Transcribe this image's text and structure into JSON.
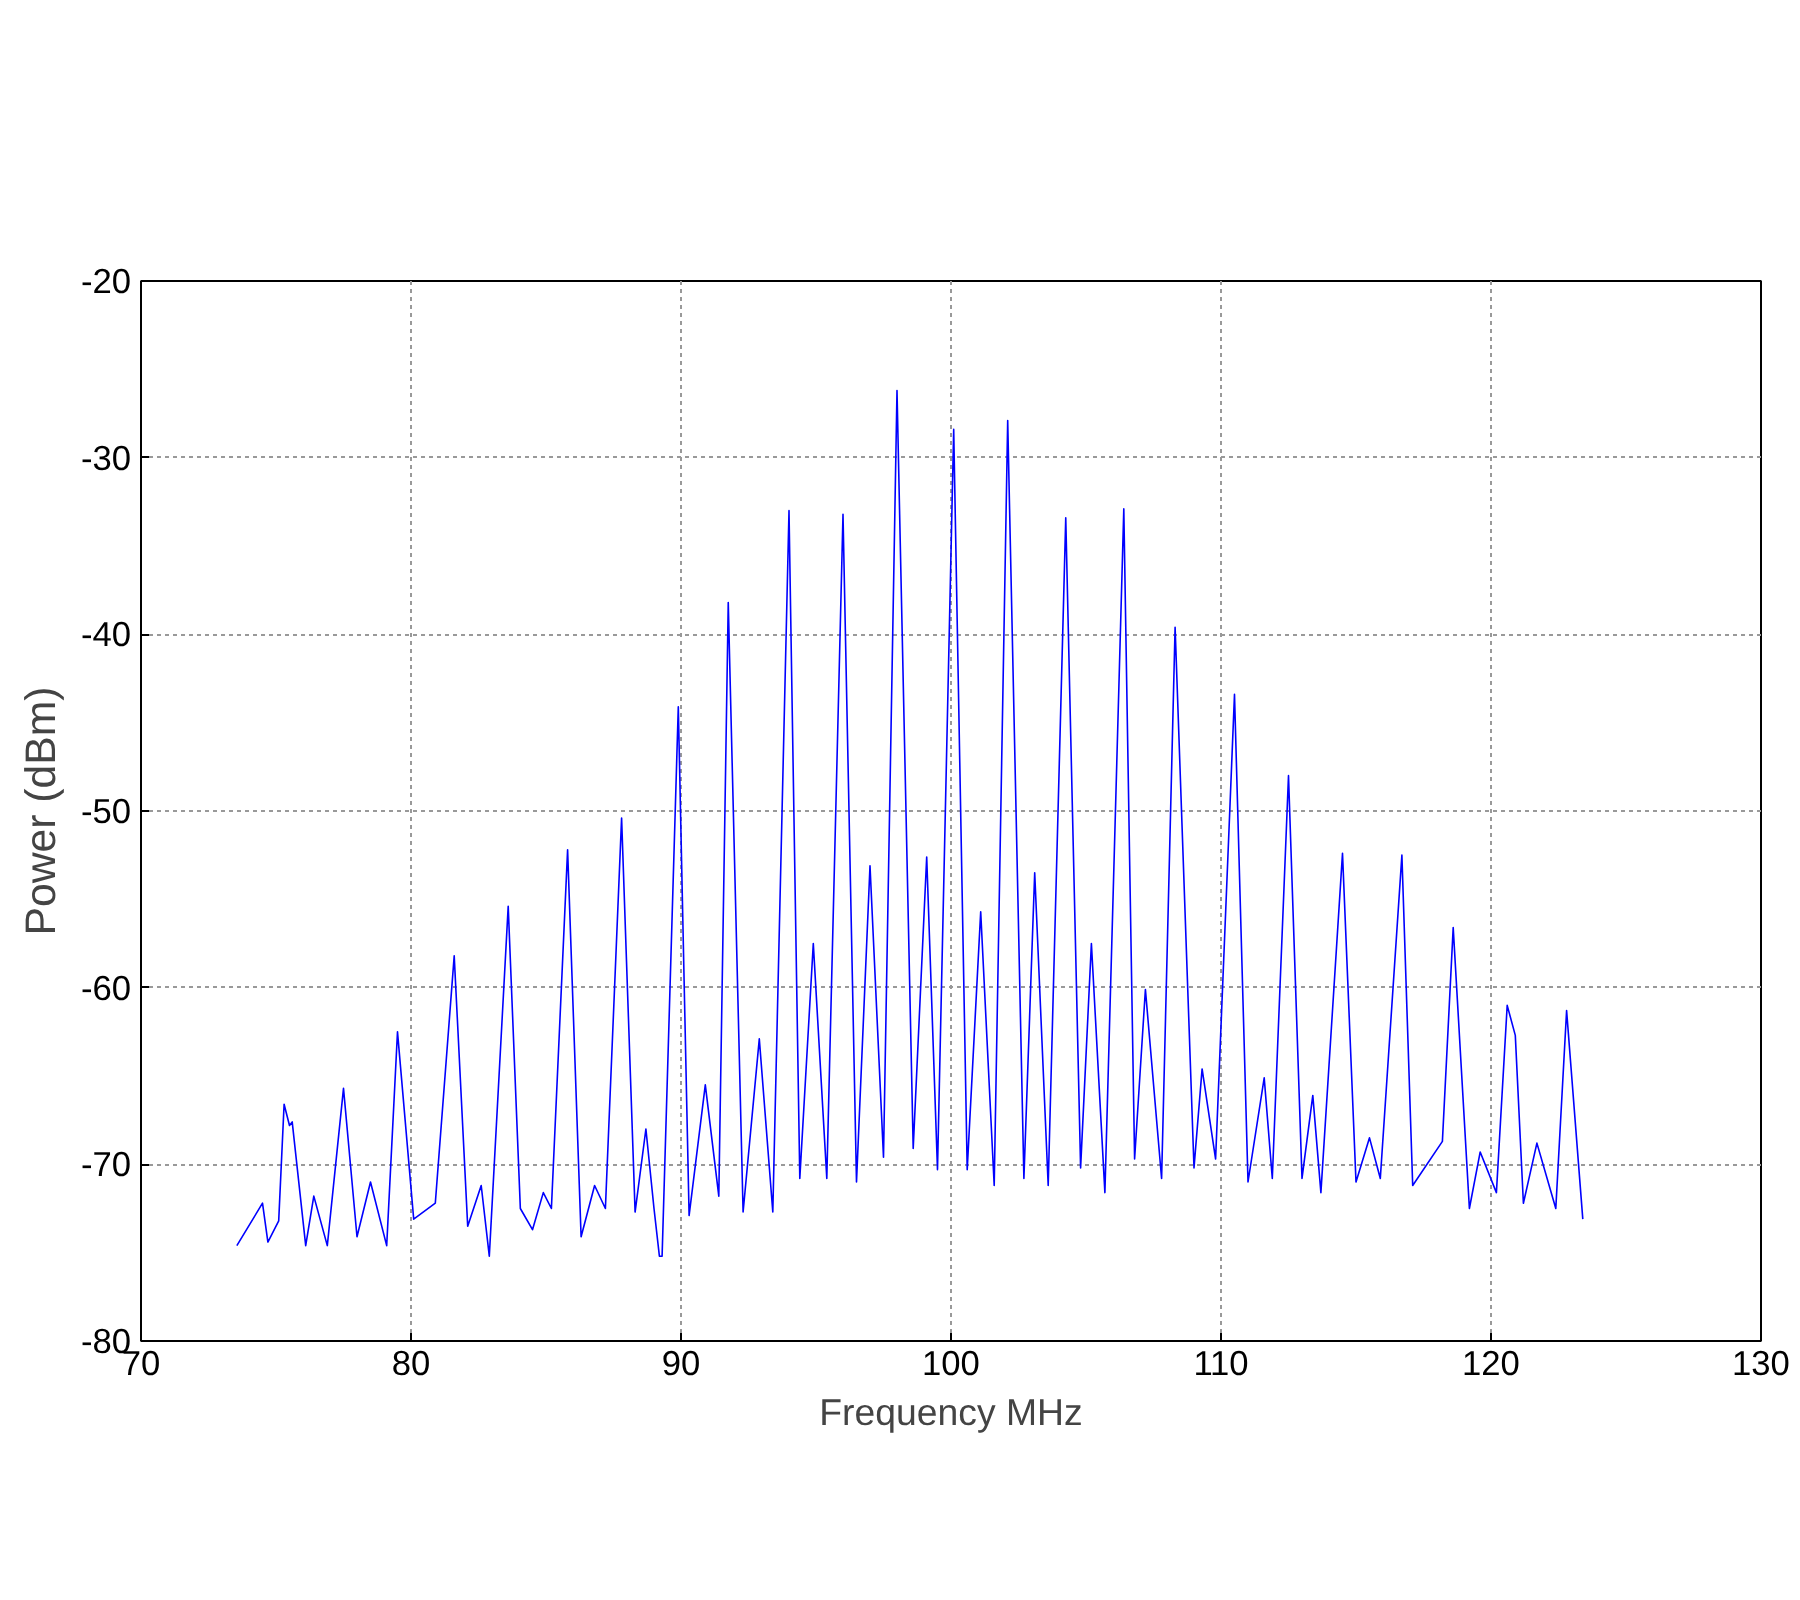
{
  "chart_data": {
    "type": "line",
    "xlabel": "Frequency MHz",
    "ylabel": "Power (dBm)",
    "xlim": [
      70,
      130
    ],
    "ylim": [
      -80,
      -20
    ],
    "xticks": [
      70,
      80,
      90,
      100,
      110,
      120,
      130
    ],
    "yticks": [
      -80,
      -70,
      -60,
      -50,
      -40,
      -30,
      -20
    ],
    "grid": true,
    "line_style": "solid",
    "marker": "none",
    "series": [
      {
        "color": "#0000ff",
        "x": [
          73.55,
          74.5,
          74.7,
          75.1,
          75.3,
          75.5,
          75.6,
          76.1,
          76.4,
          76.9,
          77.5,
          78.0,
          78.5,
          79.1,
          79.5,
          80.1,
          80.9,
          81.6,
          82.1,
          82.6,
          82.9,
          83.6,
          84.05,
          84.5,
          84.9,
          85.2,
          85.8,
          86.3,
          86.8,
          87.2,
          87.8,
          88.3,
          88.7,
          89.0,
          89.2,
          89.3,
          89.9,
          90.3,
          90.9,
          91.4,
          91.75,
          92.3,
          92.9,
          93.4,
          94.0,
          94.4,
          94.9,
          95.4,
          96.0,
          96.5,
          97.0,
          97.5,
          98.0,
          98.6,
          99.1,
          99.5,
          100.1,
          100.6,
          101.1,
          101.6,
          102.1,
          102.7,
          103.1,
          103.6,
          104.25,
          104.8,
          105.2,
          105.7,
          106.4,
          106.8,
          107.2,
          107.8,
          108.3,
          109.0,
          109.3,
          109.8,
          110.5,
          111.0,
          111.6,
          111.9,
          112.5,
          113.0,
          113.4,
          113.7,
          114.5,
          115.0,
          115.5,
          115.9,
          116.7,
          117.1,
          118.2,
          118.6,
          119.2,
          119.6,
          120.2,
          120.6,
          120.9,
          121.2,
          121.7,
          122.4,
          122.8,
          123.4
        ],
        "values": [
          -74.6,
          -72.2,
          -74.4,
          -73.2,
          -66.6,
          -67.8,
          -67.6,
          -74.6,
          -71.8,
          -74.6,
          -65.7,
          -74.1,
          -71.0,
          -74.6,
          -62.5,
          -73.1,
          -72.2,
          -58.2,
          -73.5,
          -71.2,
          -75.2,
          -55.4,
          -72.5,
          -73.7,
          -71.6,
          -72.5,
          -52.2,
          -74.1,
          -71.2,
          -72.5,
          -50.4,
          -72.7,
          -68.0,
          -72.5,
          -75.2,
          -75.2,
          -44.1,
          -72.9,
          -65.5,
          -71.8,
          -38.2,
          -72.7,
          -62.9,
          -72.7,
          -33.0,
          -70.8,
          -57.5,
          -70.8,
          -33.2,
          -71.0,
          -53.1,
          -69.6,
          -26.2,
          -69.1,
          -52.6,
          -70.3,
          -28.4,
          -70.3,
          -55.7,
          -71.2,
          -27.9,
          -70.8,
          -53.5,
          -71.2,
          -33.4,
          -70.2,
          -57.5,
          -71.6,
          -32.9,
          -69.7,
          -60.1,
          -70.8,
          -39.6,
          -70.2,
          -64.6,
          -69.7,
          -43.4,
          -71.0,
          -65.1,
          -70.8,
          -48.0,
          -70.8,
          -66.1,
          -71.6,
          -52.4,
          -71.0,
          -68.5,
          -70.8,
          -52.5,
          -71.2,
          -68.7,
          -56.6,
          -72.5,
          -69.3,
          -71.6,
          -61.0,
          -62.7,
          -72.2,
          -68.8,
          -72.5,
          -61.3,
          -73.1
        ]
      }
    ]
  }
}
